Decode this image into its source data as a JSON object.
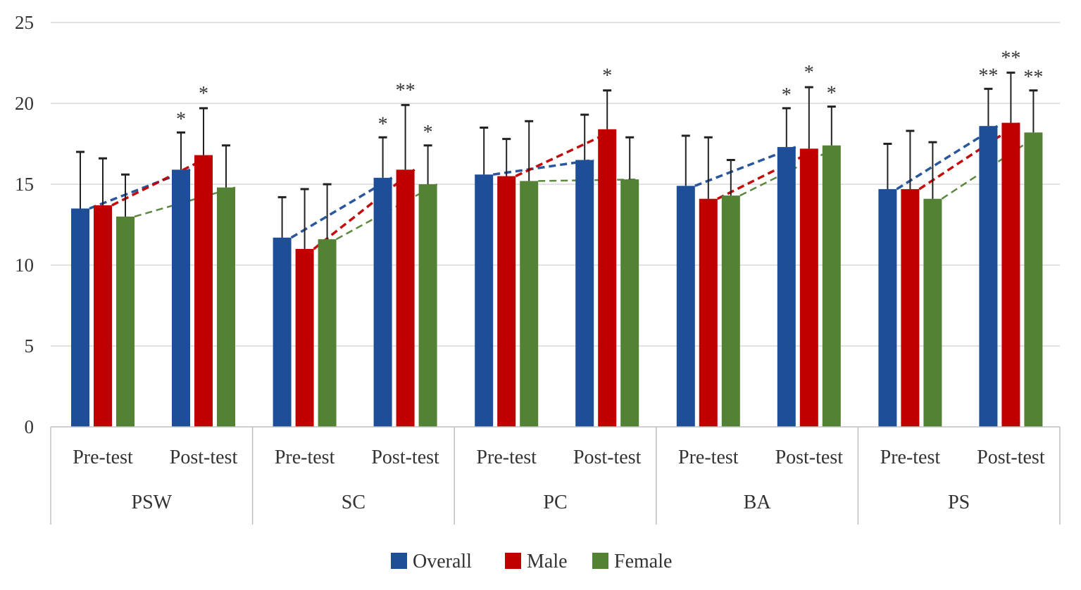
{
  "chart_data": {
    "type": "bar",
    "title": "",
    "xlabel": "",
    "ylabel": "",
    "ylim": [
      0,
      25
    ],
    "yticks": [
      0,
      5,
      10,
      15,
      20,
      25
    ],
    "grid": true,
    "legend_position": "bottom",
    "groups": [
      "PSW",
      "SC",
      "PC",
      "BA",
      "PS"
    ],
    "subcategories": [
      "Pre-test",
      "Post-test"
    ],
    "series": [
      {
        "name": "Overall",
        "color": "#1f4e99",
        "values": [
          [
            13.5,
            15.9
          ],
          [
            11.7,
            15.4
          ],
          [
            15.6,
            16.5
          ],
          [
            14.9,
            17.3
          ],
          [
            14.7,
            18.6
          ]
        ],
        "error_upper": [
          [
            17.0,
            18.2
          ],
          [
            14.2,
            17.9
          ],
          [
            18.5,
            19.3
          ],
          [
            18.0,
            19.7
          ],
          [
            17.5,
            20.9
          ]
        ],
        "significance": [
          [
            "",
            "*"
          ],
          [
            "",
            "*"
          ],
          [
            "",
            ""
          ],
          [
            "",
            "*"
          ],
          [
            "",
            "**"
          ]
        ]
      },
      {
        "name": "Male",
        "color": "#c00000",
        "values": [
          [
            13.7,
            16.8
          ],
          [
            11.0,
            15.9
          ],
          [
            15.5,
            18.4
          ],
          [
            14.1,
            17.2
          ],
          [
            14.7,
            18.8
          ]
        ],
        "error_upper": [
          [
            16.6,
            19.7
          ],
          [
            14.7,
            19.9
          ],
          [
            17.8,
            20.8
          ],
          [
            17.9,
            21.0
          ],
          [
            18.3,
            21.9
          ]
        ],
        "significance": [
          [
            "",
            "*"
          ],
          [
            "",
            "**"
          ],
          [
            "",
            "*"
          ],
          [
            "",
            "*"
          ],
          [
            "",
            "**"
          ]
        ]
      },
      {
        "name": "Female",
        "color": "#548235",
        "values": [
          [
            13.0,
            14.8
          ],
          [
            11.6,
            15.0
          ],
          [
            15.2,
            15.3
          ],
          [
            14.3,
            17.4
          ],
          [
            14.1,
            18.2
          ]
        ],
        "error_upper": [
          [
            15.6,
            17.4
          ],
          [
            15.0,
            17.4
          ],
          [
            18.9,
            17.9
          ],
          [
            16.5,
            19.8
          ],
          [
            17.6,
            20.8
          ]
        ],
        "significance": [
          [
            "",
            ""
          ],
          [
            "",
            "*"
          ],
          [
            "",
            ""
          ],
          [
            "",
            "*"
          ],
          [
            "",
            "**"
          ]
        ]
      }
    ]
  }
}
